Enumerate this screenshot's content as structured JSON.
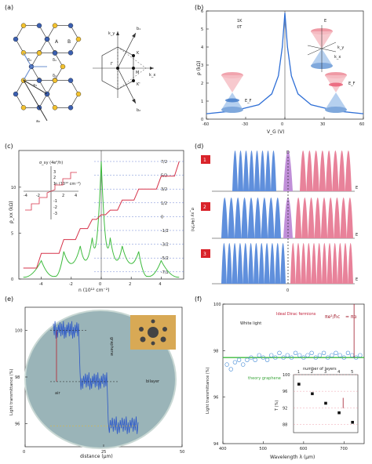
{
  "panel_labels": [
    "(a)",
    "(b)",
    "(c)",
    "(d)",
    "(e)",
    "(f)"
  ],
  "a": {
    "sublattice_labels": [
      "A",
      "B"
    ],
    "delta_labels": [
      "δ₃",
      "δ₁",
      "δ₂"
    ],
    "vector_labels": [
      "a₁",
      "a₂"
    ],
    "kspace_labels": {
      "ky": "k_y",
      "kx": "k_x",
      "b1": "b₁",
      "b2": "b₂",
      "gamma": "Γ",
      "K": "K",
      "M": "M",
      "Kp": "K'"
    },
    "colors": {
      "A": "#f2c12e",
      "B": "#3b5fb0",
      "arrow": "#6a8fcf"
    }
  },
  "b": {
    "annotations": [
      "1K",
      "0T"
    ],
    "cone_labels": [
      "E",
      "k_y",
      "k_x",
      "E_F",
      "E_F"
    ],
    "chart_data": {
      "type": "line",
      "xlabel": "V_G (V)",
      "ylabel": "ρ (kΩ)",
      "xlim": [
        -60,
        60
      ],
      "ylim": [
        0,
        6
      ],
      "xticks": [
        "-60",
        "-30",
        "0",
        "30",
        "60"
      ],
      "yticks": [
        "0",
        "1",
        "2",
        "3",
        "4",
        "5",
        "6"
      ],
      "color": "#2f6fd6",
      "x": [
        -60,
        -40,
        -20,
        -10,
        -5,
        -2,
        0,
        2,
        5,
        10,
        20,
        40,
        60
      ],
      "y": [
        0.3,
        0.45,
        0.8,
        1.4,
        2.4,
        4.0,
        5.9,
        4.0,
        2.4,
        1.4,
        0.8,
        0.45,
        0.3
      ]
    }
  },
  "c": {
    "inset_title": "σ_xy (4e²/h)",
    "inset_xlabel": "n (10¹² cm⁻²)",
    "inset_xticks": [
      "-4",
      "-2",
      "2",
      "4"
    ],
    "inset_yticks": [
      "3",
      "2",
      "1",
      "-1",
      "-2",
      "-3"
    ],
    "right_label": "σ_xy (4e²/h)",
    "chart_data": {
      "type": "line",
      "xlabel": "n (10¹² cm⁻²)",
      "ylabel": "ρ_xx (kΩ)",
      "xlim": [
        -5.5,
        5.5
      ],
      "ylim": [
        0,
        14
      ],
      "xticks": [
        "-4",
        "-2",
        "0",
        "2",
        "4"
      ],
      "yticks": [
        "0",
        "5",
        "10"
      ],
      "right_ticks": [
        "7/2",
        "5/2",
        "3/2",
        "1/2",
        "0",
        "-1/2",
        "-3/2",
        "-5/2",
        "-7/2"
      ],
      "series": [
        {
          "color": "#d6334a",
          "x": [
            -5.2,
            -4.0,
            -2.5,
            -1.4,
            -0.6,
            0.0,
            0.6,
            1.4,
            2.5,
            4.0,
            5.2
          ],
          "y": [
            1.2,
            2.8,
            4.3,
            5.5,
            6.5,
            7.0,
            7.5,
            8.6,
            9.8,
            11.2,
            12.8
          ]
        },
        {
          "color": "#3dbb3d",
          "x": [
            -5.2,
            -4.0,
            -3.1,
            -2.5,
            -1.4,
            -0.6,
            0.0,
            0.6,
            1.4,
            2.5,
            3.1,
            4.0,
            5.2
          ],
          "y": [
            0.2,
            2.0,
            0.3,
            3.0,
            3.6,
            4.5,
            12.8,
            4.5,
            3.6,
            3.0,
            0.3,
            2.0,
            0.2
          ]
        }
      ]
    }
  },
  "d": {
    "row_numbers": [
      "1",
      "2",
      "3"
    ],
    "dirac_label": "D",
    "energy_label": "E",
    "zero_label": "0",
    "colors": {
      "hole": "#5f8fdc",
      "electron": "#e8829a",
      "dirac": "#c08fd8",
      "badge": "#d9232a"
    }
  },
  "e": {
    "ylabel": "Light transmittance (%)",
    "xlabel": "distance (μm)",
    "yticks": [
      "100",
      "98",
      "96"
    ],
    "xticks": [
      "0",
      "25",
      "50"
    ],
    "region_labels": [
      "graphene",
      "bilayer",
      "air"
    ],
    "chart_data": {
      "type": "line",
      "xlim": [
        0,
        50
      ],
      "ylim": [
        95,
        101
      ],
      "x": [
        9,
        17,
        17.5,
        26,
        26.5,
        36
      ],
      "y": [
        100,
        100,
        97.8,
        97.8,
        95.9,
        95.9
      ]
    }
  },
  "f": {
    "legend": [
      "White light",
      "Ideal Dirac fermions",
      "theory graphene"
    ],
    "formula_lhs": "πe²/ħc",
    "formula_rhs": "= πα",
    "inset_title": "number of layers",
    "inset_ylabel": "T (%)",
    "inset_xticks": [
      "1",
      "2",
      "3",
      "4",
      "5"
    ],
    "inset_yticks": [
      "100",
      "96",
      "92",
      "88"
    ],
    "chart_data": {
      "type": "scatter",
      "xlabel": "Wavelength λ (μm)",
      "ylabel": "Light transmittance (%)",
      "xlim": [
        400,
        750
      ],
      "ylim": [
        94,
        100
      ],
      "xticks": [
        "400",
        "500",
        "600",
        "700"
      ],
      "yticks": [
        "94",
        "96",
        "98",
        "100"
      ],
      "x": [
        410,
        420,
        430,
        440,
        450,
        460,
        470,
        480,
        490,
        500,
        510,
        520,
        530,
        540,
        550,
        560,
        570,
        580,
        590,
        600,
        610,
        620,
        630,
        640,
        650,
        660,
        670,
        680,
        690,
        700,
        710,
        720,
        730,
        740
      ],
      "y": [
        97.4,
        97.2,
        97.5,
        97.6,
        97.4,
        97.6,
        97.7,
        97.6,
        97.8,
        97.7,
        97.6,
        97.8,
        97.7,
        97.9,
        97.7,
        97.8,
        97.7,
        97.9,
        97.8,
        97.7,
        97.8,
        97.9,
        97.7,
        97.8,
        97.9,
        97.7,
        97.8,
        97.9,
        97.8,
        97.7,
        97.9,
        97.8,
        97.7,
        97.8
      ],
      "theory": 97.7,
      "inset_x": [
        1,
        2,
        3,
        4,
        5
      ],
      "inset_y": [
        97.7,
        95.4,
        93.1,
        90.8,
        88.5
      ]
    }
  }
}
